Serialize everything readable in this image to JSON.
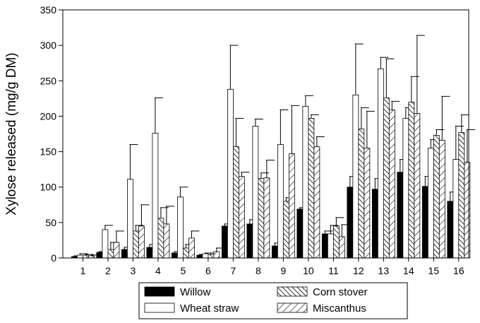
{
  "chart_data": {
    "type": "bar",
    "title": "",
    "xlabel": "",
    "ylabel": "Xylose released (mg/g DM)",
    "ylim": [
      0,
      350
    ],
    "yticks": [
      0,
      50,
      100,
      150,
      200,
      250,
      300,
      350
    ],
    "categories": [
      "1",
      "2",
      "3",
      "4",
      "5",
      "6",
      "7",
      "8",
      "9",
      "10",
      "11",
      "12",
      "13",
      "14",
      "15",
      "16"
    ],
    "error_bars": "upper",
    "legend_position": "bottom",
    "legend_columns": 2,
    "series": [
      {
        "name": "Willow",
        "fill": "solid-black",
        "values": [
          2,
          8,
          12,
          15,
          7,
          4,
          45,
          48,
          17,
          69,
          34,
          100,
          97,
          121,
          101,
          80
        ],
        "errors": [
          1,
          1,
          3,
          4,
          2,
          1,
          3,
          6,
          4,
          2,
          4,
          15,
          15,
          18,
          14,
          13
        ]
      },
      {
        "name": "Wheat straw",
        "fill": "white",
        "values": [
          4,
          40,
          111,
          176,
          86,
          6,
          238,
          186,
          160,
          214,
          34,
          230,
          267,
          197,
          155,
          139
        ],
        "errors": [
          2,
          6,
          49,
          50,
          14,
          1,
          62,
          10,
          49,
          15,
          12,
          72,
          16,
          15,
          12,
          47
        ]
      },
      {
        "name": "Corn stover",
        "fill": "diagonal-hatch",
        "values": [
          4,
          12,
          38,
          56,
          14,
          5,
          157,
          112,
          80,
          197,
          45,
          182,
          226,
          220,
          173,
          177
        ],
        "errors": [
          1,
          10,
          8,
          15,
          5,
          2,
          40,
          8,
          5,
          5,
          12,
          30,
          55,
          36,
          8,
          25
        ]
      },
      {
        "name": "Miscanthus",
        "fill": "back-diagonal-hatch",
        "values": [
          3,
          22,
          45,
          48,
          28,
          9,
          115,
          113,
          147,
          157,
          30,
          155,
          209,
          204,
          166,
          135
        ],
        "errors": [
          1,
          16,
          30,
          25,
          10,
          5,
          6,
          25,
          68,
          14,
          17,
          52,
          12,
          110,
          62,
          46
        ]
      }
    ]
  }
}
